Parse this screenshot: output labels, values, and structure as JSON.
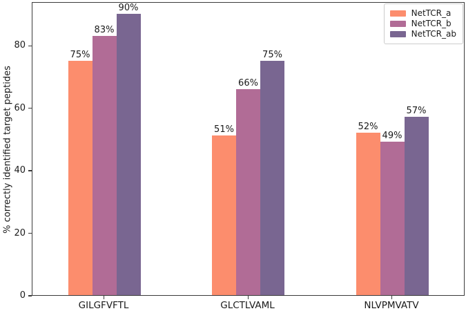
{
  "figure": {
    "background": "#ffffff",
    "spine_color": "#3a3a3a",
    "text_color": "#1a1a1a"
  },
  "chart_data": {
    "type": "bar",
    "title": "",
    "xlabel": "",
    "ylabel": "% correctly identified target peptides",
    "categories": [
      "GILGFVFTL",
      "GLCTLVAML",
      "NLVPMVATV"
    ],
    "series": [
      {
        "name": "NetTCR_a",
        "color": "#FC8D6D",
        "values": [
          75,
          51,
          52
        ]
      },
      {
        "name": "NetTCR_b",
        "color": "#B16C96",
        "values": [
          83,
          66,
          49
        ]
      },
      {
        "name": "NetTCR_ab",
        "color": "#796691",
        "values": [
          90,
          75,
          57
        ]
      }
    ],
    "bar_value_labels": [
      [
        "75%",
        "83%",
        "90%"
      ],
      [
        "51%",
        "66%",
        "75%"
      ],
      [
        "52%",
        "49%",
        "57%"
      ]
    ],
    "yticks": [
      0,
      20,
      40,
      60,
      80
    ],
    "ylim": [
      0,
      94
    ],
    "grid": false,
    "legend_position": "upper right"
  }
}
